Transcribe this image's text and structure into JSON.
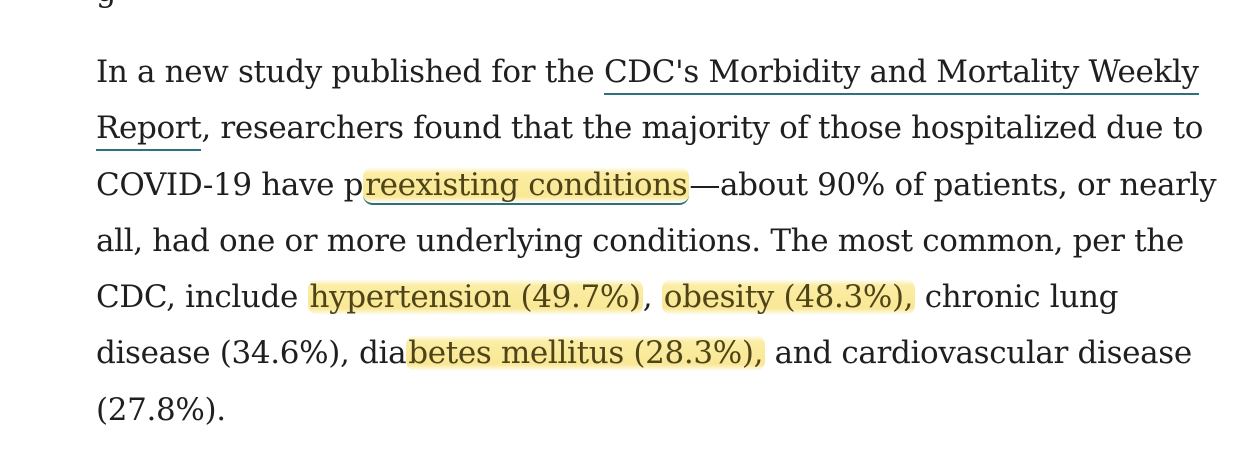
{
  "article": {
    "prev_fragment": "g",
    "p1": "In a new study published for the ",
    "link1": "CDC's Morbidity and Mortality Weekly Report",
    "p2": ", researchers found that the majority of those hospitalized due to COVID-19 have p",
    "link2": "reexisting conditions",
    "p3": "—about 90% of patients, or nearly all, had one or more underlying conditions. The most common, per the CDC, include ",
    "hl1": "hypertension (49.7%)",
    "p4": ", ",
    "hl2": "obesity (48.3%),",
    "p5": " chronic lung disease (34.6%), dia",
    "hl3": "betes mellitus (28.3%),",
    "p6": " and cardiovascular disease (27.8%)."
  },
  "colors": {
    "text": "#1f1f1f",
    "link_underline": "#2f6f80",
    "highlight": "#f8e68c",
    "highlight_text": "#4f4418",
    "background": "#ffffff"
  }
}
